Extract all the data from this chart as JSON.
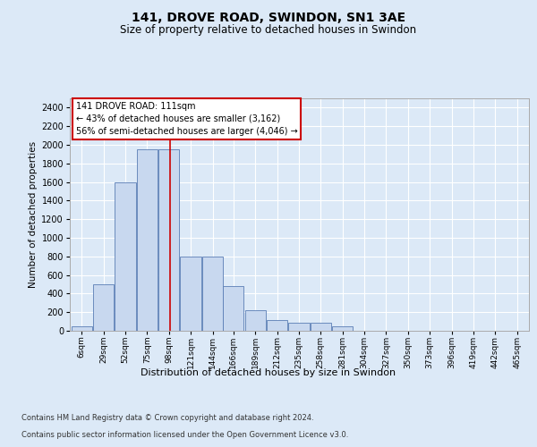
{
  "title": "141, DROVE ROAD, SWINDON, SN1 3AE",
  "subtitle": "Size of property relative to detached houses in Swindon",
  "xlabel": "Distribution of detached houses by size in Swindon",
  "ylabel": "Number of detached properties",
  "footer_line1": "Contains HM Land Registry data © Crown copyright and database right 2024.",
  "footer_line2": "Contains public sector information licensed under the Open Government Licence v3.0.",
  "annotation_title": "141 DROVE ROAD: 111sqm",
  "annotation_line2": "← 43% of detached houses are smaller (3,162)",
  "annotation_line3": "56% of semi-detached houses are larger (4,046) →",
  "bar_color": "#c8d8ef",
  "bar_edge_color": "#5a7db5",
  "background_color": "#dce9f7",
  "grid_color": "#ffffff",
  "vline_color": "#cc0000",
  "vline_x": 111,
  "bin_starts": [
    6,
    29,
    52,
    75,
    98,
    121,
    144,
    166,
    189,
    212,
    235,
    258,
    281,
    304,
    327,
    350,
    373,
    396,
    419,
    442,
    465
  ],
  "bin_width": 23,
  "bar_values": [
    50,
    500,
    1600,
    1950,
    1950,
    800,
    800,
    480,
    220,
    120,
    90,
    85,
    45,
    0,
    0,
    0,
    0,
    0,
    0,
    0
  ],
  "ylim": [
    0,
    2500
  ],
  "yticks": [
    0,
    200,
    400,
    600,
    800,
    1000,
    1200,
    1400,
    1600,
    1800,
    2000,
    2200,
    2400
  ],
  "categories": [
    "6sqm",
    "29sqm",
    "52sqm",
    "75sqm",
    "98sqm",
    "121sqm",
    "144sqm",
    "166sqm",
    "189sqm",
    "212sqm",
    "235sqm",
    "258sqm",
    "281sqm",
    "304sqm",
    "327sqm",
    "350sqm",
    "373sqm",
    "396sqm",
    "419sqm",
    "442sqm",
    "465sqm"
  ]
}
